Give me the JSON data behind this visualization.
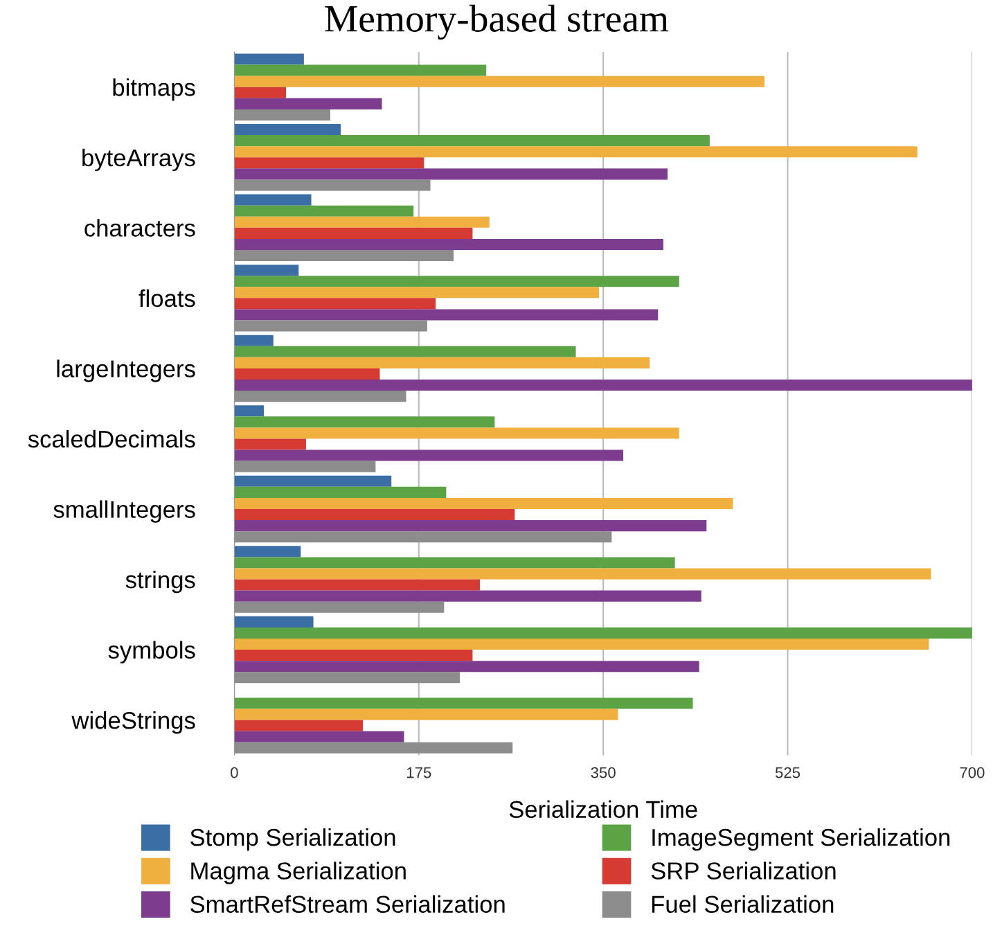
{
  "chart_data": {
    "type": "bar",
    "orientation": "horizontal",
    "title": "Memory-based stream",
    "xlabel": "Serialization Time",
    "categories": [
      "bitmaps",
      "byteArrays",
      "characters",
      "floats",
      "largeIntegers",
      "scaledDecimals",
      "smallIntegers",
      "strings",
      "symbols",
      "wideStrings"
    ],
    "series": [
      {
        "name": "Stomp Serialization",
        "color": "#3a6ea5",
        "values": [
          66,
          101,
          73,
          61,
          37,
          28,
          149,
          63,
          75,
          null
        ]
      },
      {
        "name": "ImageSegment Serialization",
        "color": "#5ca346",
        "values": [
          239,
          451,
          170,
          422,
          324,
          247,
          201,
          418,
          700,
          435
        ]
      },
      {
        "name": "Magma Serialization",
        "color": "#f0b040",
        "values": [
          503,
          648,
          242,
          346,
          394,
          422,
          473,
          661,
          659,
          364
        ]
      },
      {
        "name": "SRP Serialization",
        "color": "#d63b33",
        "values": [
          49,
          180,
          226,
          191,
          138,
          68,
          266,
          233,
          226,
          122
        ]
      },
      {
        "name": "SmartRefStream Serialization",
        "color": "#7d3c8e",
        "values": [
          140,
          411,
          407,
          402,
          700,
          369,
          448,
          443,
          441,
          161
        ]
      },
      {
        "name": "Fuel Serialization",
        "color": "#8c8c8c",
        "values": [
          91,
          186,
          208,
          183,
          163,
          134,
          358,
          199,
          214,
          264
        ]
      }
    ],
    "xlim": [
      0,
      700
    ],
    "xticks": [
      0,
      175,
      350,
      525,
      700
    ],
    "grid": "x",
    "legend": "bottom"
  }
}
